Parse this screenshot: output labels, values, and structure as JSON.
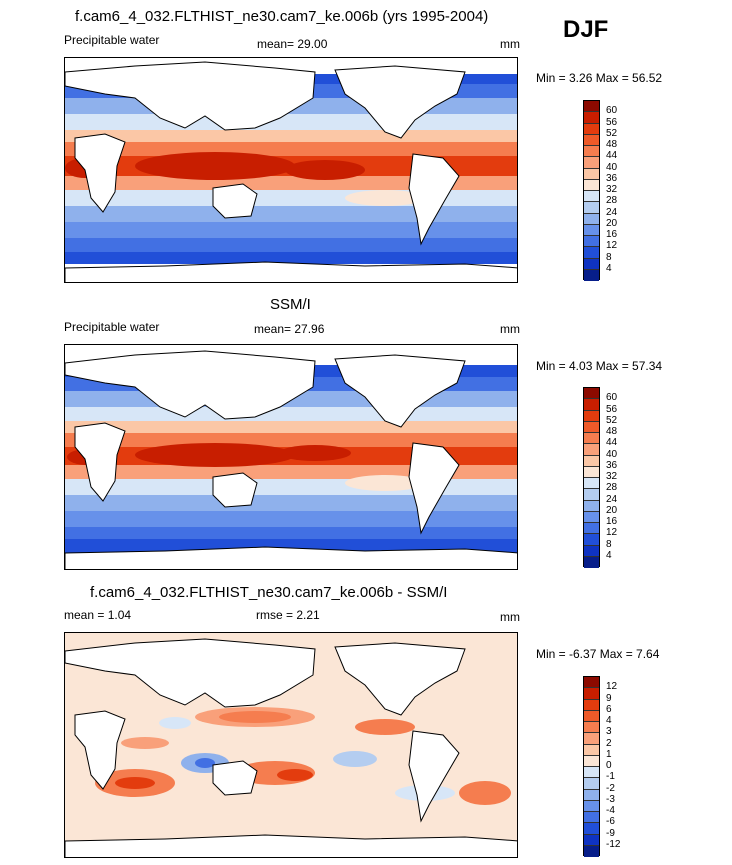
{
  "season": "DJF",
  "panels": [
    {
      "title": "f.cam6_4_032.FLTHIST_ne30.cam7_ke.006b (yrs 1995-2004)",
      "left_label": "Precipitable water",
      "mid_label": "mean=  29.00",
      "units": "mm",
      "minmax": "Min =   3.26 Max =  56.52",
      "colorbar": {
        "labels": [
          "60",
          "56",
          "52",
          "48",
          "44",
          "40",
          "36",
          "32",
          "28",
          "24",
          "20",
          "16",
          "12",
          "8",
          "4"
        ],
        "colors": [
          "#8c0a00",
          "#c81e00",
          "#e33c0e",
          "#ee5a29",
          "#f57d4f",
          "#f9a07a",
          "#fbc7a6",
          "#fbe6d6",
          "#d7e6f7",
          "#b4cdf0",
          "#8fb1ec",
          "#6791ea",
          "#4270e3",
          "#214fd8",
          "#0f33c2",
          "#071e8a"
        ]
      }
    },
    {
      "title": "SSM/I",
      "left_label": "Precipitable water",
      "mid_label": "mean=  27.96",
      "units": "mm",
      "minmax": "Min =   4.03 Max =  57.34",
      "colorbar": {
        "labels": [
          "60",
          "56",
          "52",
          "48",
          "44",
          "40",
          "36",
          "32",
          "28",
          "24",
          "20",
          "16",
          "12",
          "8",
          "4"
        ],
        "colors": [
          "#8c0a00",
          "#c81e00",
          "#e33c0e",
          "#ee5a29",
          "#f57d4f",
          "#f9a07a",
          "#fbc7a6",
          "#fbe6d6",
          "#d7e6f7",
          "#b4cdf0",
          "#8fb1ec",
          "#6791ea",
          "#4270e3",
          "#214fd8",
          "#0f33c2",
          "#071e8a"
        ]
      }
    },
    {
      "title": "f.cam6_4_032.FLTHIST_ne30.cam7_ke.006b - SSM/I",
      "left_label": "mean =   1.04",
      "mid_label": "rmse =   2.21",
      "units": "mm",
      "minmax": "Min =  -6.37 Max =   7.64",
      "colorbar": {
        "labels": [
          "12",
          "9",
          "6",
          "4",
          "3",
          "2",
          "1",
          "0",
          "-1",
          "-2",
          "-3",
          "-4",
          "-6",
          "-9",
          "-12"
        ],
        "colors": [
          "#8c0a00",
          "#c81e00",
          "#e33c0e",
          "#ee5a29",
          "#f57d4f",
          "#f9a07a",
          "#fbc7a6",
          "#fbe6d6",
          "#d7e6f7",
          "#b4cdf0",
          "#8fb1ec",
          "#6791ea",
          "#4270e3",
          "#214fd8",
          "#0f33c2",
          "#071e8a"
        ]
      }
    }
  ]
}
